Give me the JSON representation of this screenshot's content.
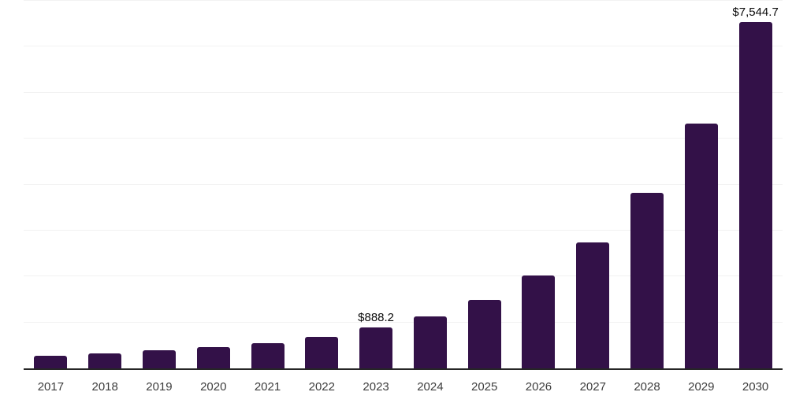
{
  "chart_data": {
    "type": "bar",
    "title": "",
    "xlabel": "",
    "ylabel": "",
    "categories": [
      "2017",
      "2018",
      "2019",
      "2020",
      "2021",
      "2022",
      "2023",
      "2024",
      "2025",
      "2026",
      "2027",
      "2028",
      "2029",
      "2030"
    ],
    "values": [
      270,
      325,
      398,
      456,
      552,
      684,
      888.2,
      1128,
      1487,
      2017,
      2747,
      3824,
      5328,
      7544.7
    ],
    "value_labels": {
      "2023": "$888.2",
      "2030": "$7,544.7"
    },
    "ylim": [
      0,
      8000
    ],
    "grid_step": 1000,
    "grid_on": true,
    "legend_position": "none",
    "colors": {
      "bar": "#331148",
      "axis_line": "#262626",
      "gridline": "#f2f2f2",
      "x_label": "#3d3d3d",
      "value_label": "#0a0a0a",
      "background": "#ffffff"
    }
  }
}
